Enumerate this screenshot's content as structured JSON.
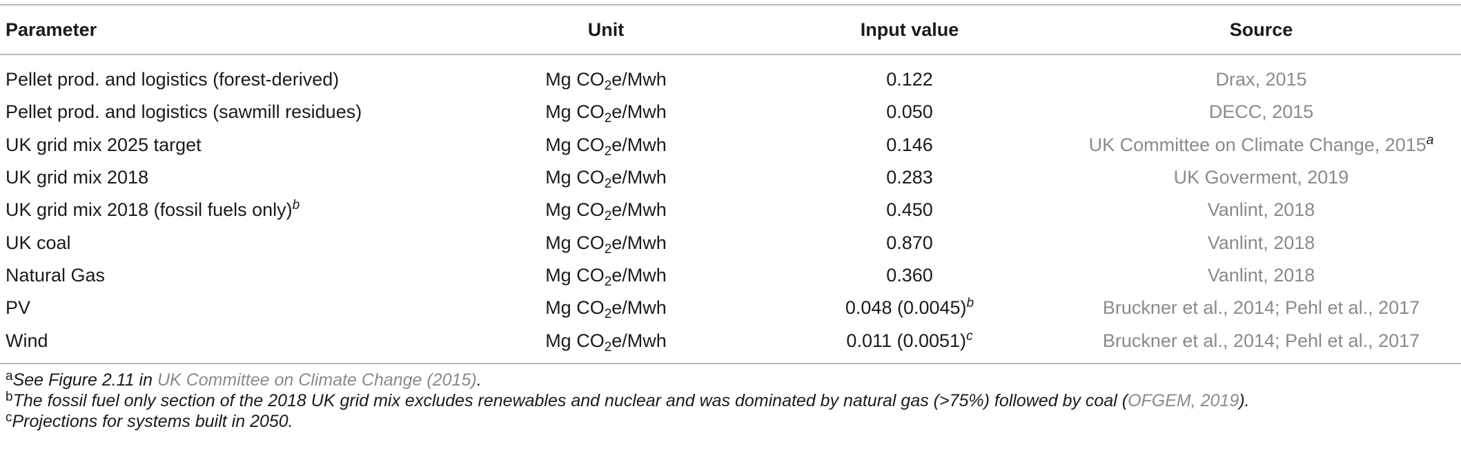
{
  "table": {
    "headers": {
      "parameter": "Parameter",
      "unit": "Unit",
      "input_value": "Input value",
      "source": "Source"
    },
    "unit_parts": {
      "pre": "Mg CO",
      "sub": "2",
      "post": "e/Mwh"
    },
    "rows": [
      {
        "parameter": "Pellet prod. and logistics (forest-derived)",
        "parameter_sup": "",
        "value": "0.122",
        "value_sup": "",
        "source": "Drax, 2015",
        "source_sup": ""
      },
      {
        "parameter": "Pellet prod. and logistics (sawmill residues)",
        "parameter_sup": "",
        "value": "0.050",
        "value_sup": "",
        "source": "DECC, 2015",
        "source_sup": ""
      },
      {
        "parameter": "UK grid mix 2025 target",
        "parameter_sup": "",
        "value": "0.146",
        "value_sup": "",
        "source": "UK Committee on Climate Change, 2015",
        "source_sup": "a"
      },
      {
        "parameter": "UK grid mix 2018",
        "parameter_sup": "",
        "value": "0.283",
        "value_sup": "",
        "source": "UK Goverment, 2019",
        "source_sup": ""
      },
      {
        "parameter": "UK grid mix 2018 (fossil fuels only)",
        "parameter_sup": "b",
        "value": "0.450",
        "value_sup": "",
        "source": "Vanlint, 2018",
        "source_sup": ""
      },
      {
        "parameter": "UK coal",
        "parameter_sup": "",
        "value": "0.870",
        "value_sup": "",
        "source": "Vanlint, 2018",
        "source_sup": ""
      },
      {
        "parameter": "Natural Gas",
        "parameter_sup": "",
        "value": "0.360",
        "value_sup": "",
        "source": "Vanlint, 2018",
        "source_sup": ""
      },
      {
        "parameter": "PV",
        "parameter_sup": "",
        "value": "0.048 (0.0045)",
        "value_sup": "b",
        "source": "Bruckner et al., 2014; Pehl et al., 2017",
        "source_sup": ""
      },
      {
        "parameter": "Wind",
        "parameter_sup": "",
        "value": "0.011 (0.0051)",
        "value_sup": "c",
        "source": "Bruckner et al., 2014; Pehl et al., 2017",
        "source_sup": ""
      }
    ]
  },
  "footnotes": {
    "a": {
      "mark": "a",
      "text": "See Figure 2.11 in ",
      "link": "UK Committee on Climate Change (2015)",
      "after": "."
    },
    "b": {
      "mark": "b",
      "text": "The fossil fuel only section of the 2018 UK grid mix excludes renewables and nuclear and was dominated by natural gas (>75%) followed by coal (",
      "link": "OFGEM, 2019",
      "after": ")."
    },
    "c": {
      "mark": "c",
      "text": "Projections for systems built in 2050."
    }
  }
}
